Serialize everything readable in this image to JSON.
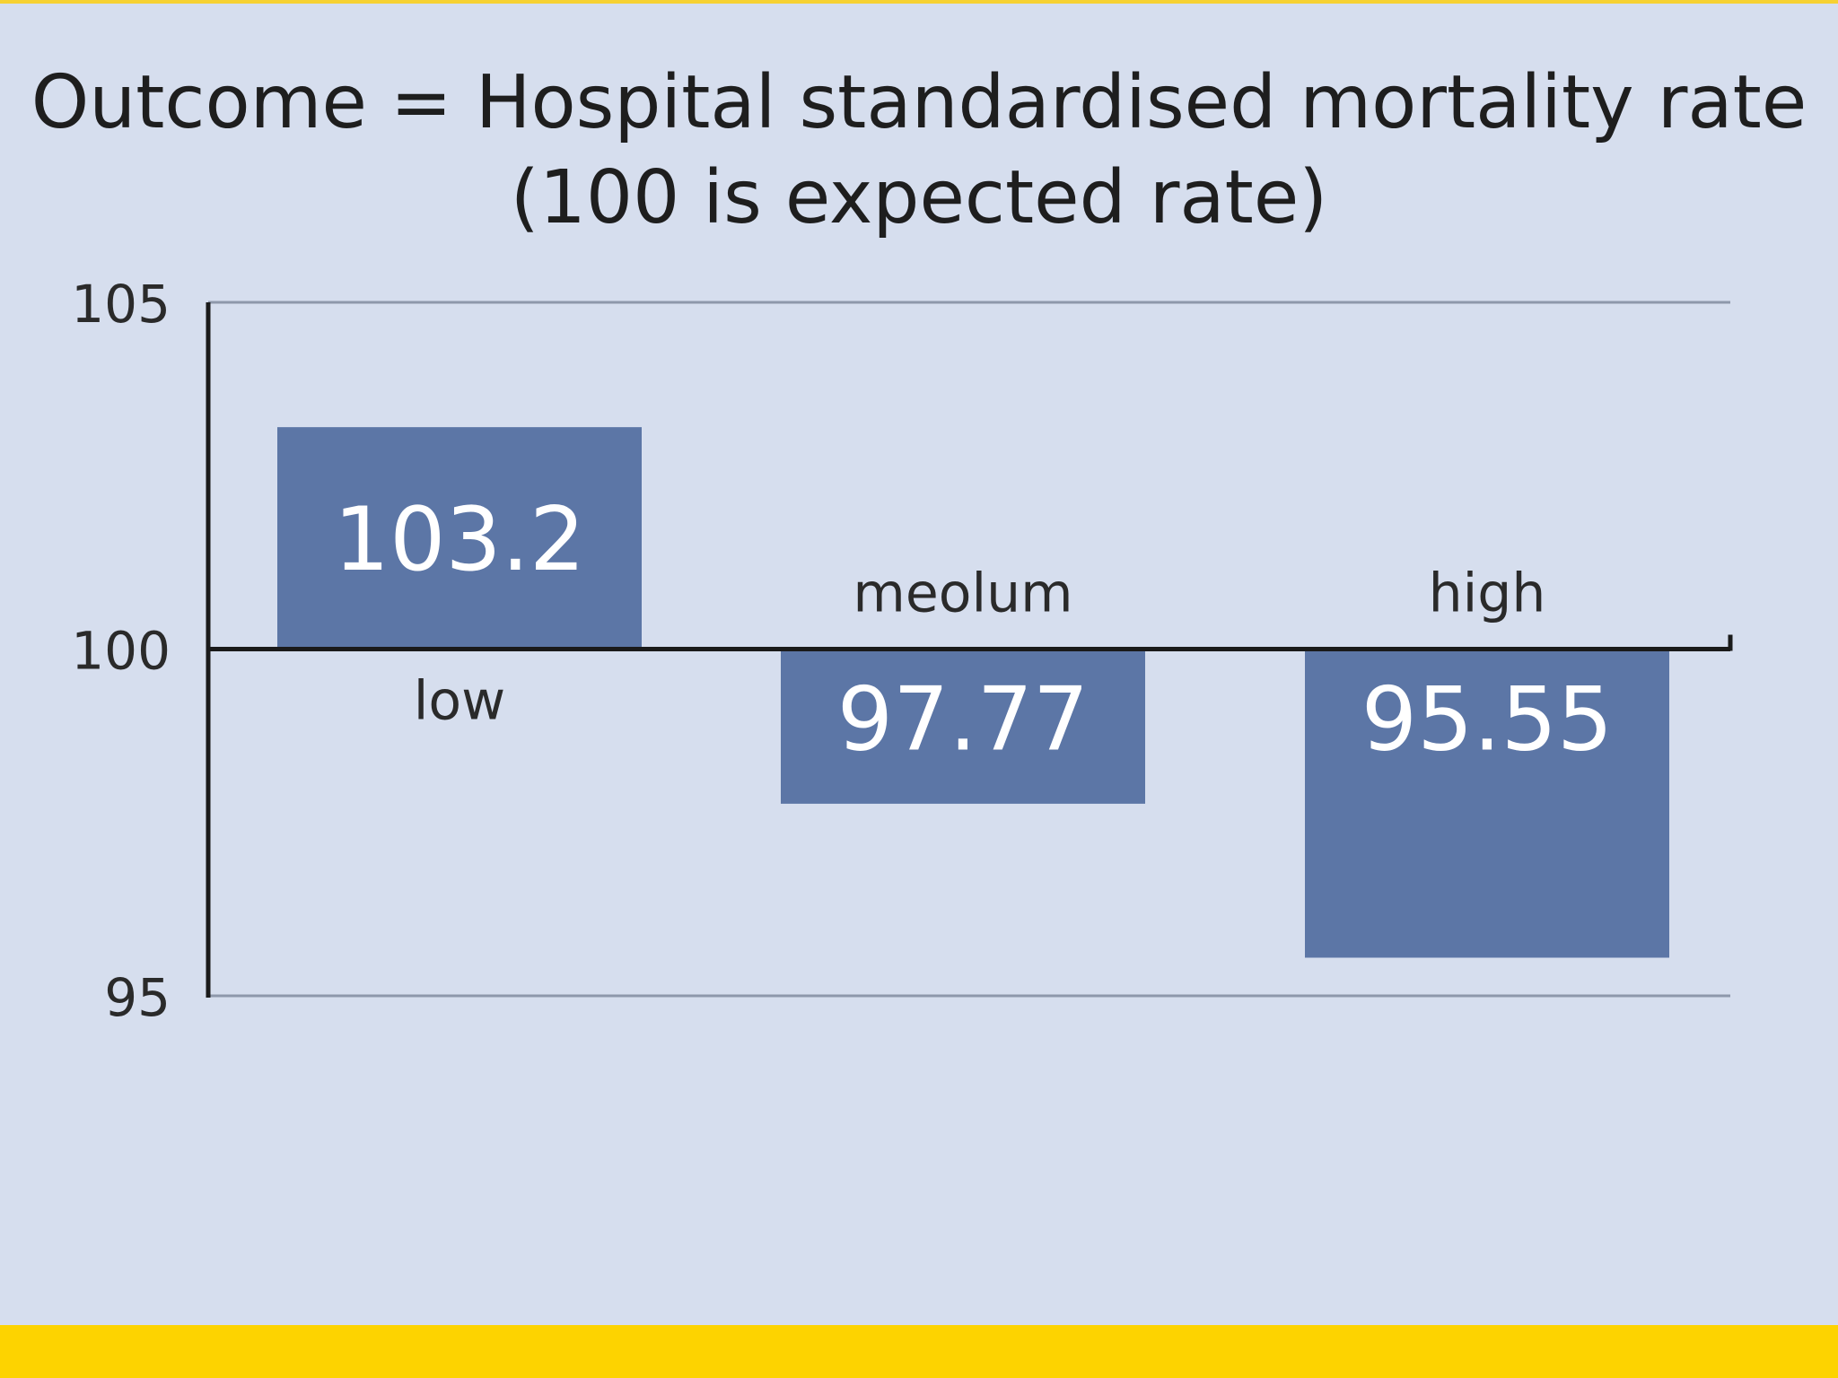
{
  "chart_data": {
    "type": "bar",
    "title": "Outcome = Hospital standardised mortality rate",
    "subtitle": "(100 is expected rate)",
    "baseline": 100,
    "ylim": [
      95,
      105
    ],
    "yticks": [
      "105",
      "100",
      "95"
    ],
    "ytick_values": [
      105,
      100,
      95
    ],
    "categories": [
      "low",
      "meolum",
      "high"
    ],
    "values": [
      103.2,
      97.77,
      95.55
    ],
    "data_labels": [
      "103.2",
      "97.77",
      "95.55"
    ],
    "grid": true,
    "bar_color": "#5c76a6",
    "label_color": "#ffffff",
    "background": "#d6deee",
    "accent_bar_color": "#fdd300"
  }
}
